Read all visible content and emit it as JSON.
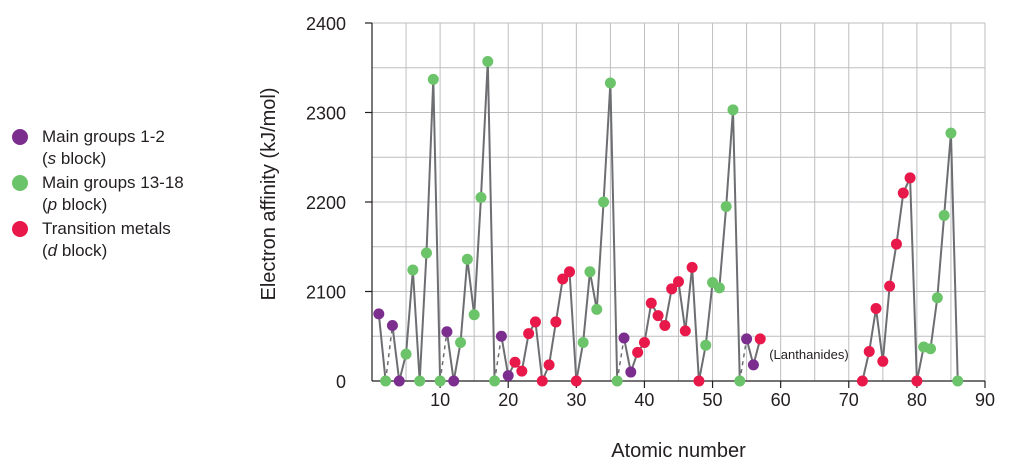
{
  "chart_data": {
    "type": "scatter",
    "xlabel": "Atomic number",
    "ylabel": "Electron affinity (kJ/mol)",
    "xlim": [
      0,
      90
    ],
    "ylim": [
      2000,
      2400
    ],
    "y_zero_label": "0",
    "x_ticks": [
      10,
      20,
      30,
      40,
      50,
      60,
      70,
      80,
      90
    ],
    "y_ticks": [
      2100,
      2200,
      2300,
      2400
    ],
    "grid": true,
    "legend_position": "left",
    "annotation": "(Lanthanides)",
    "colors": {
      "s": "#7b2e8e",
      "p": "#6cc46a",
      "d": "#e8194a",
      "line": "#6d6e71",
      "grid": "#bcbec0"
    },
    "series": [
      {
        "name": "Main groups 1-2",
        "name_block": "s",
        "name_block_suffix": " block",
        "key": "s",
        "points": [
          [
            1,
            2075
          ],
          [
            3,
            2062
          ],
          [
            4,
            2000
          ],
          [
            11,
            2055
          ],
          [
            12,
            2000
          ],
          [
            19,
            2050
          ],
          [
            20,
            2006
          ],
          [
            37,
            2048
          ],
          [
            38,
            2010
          ],
          [
            55,
            2047
          ],
          [
            56,
            2018
          ]
        ]
      },
      {
        "name": "Main groups 13-18",
        "name_block": "p",
        "name_block_suffix": " block",
        "key": "p",
        "points": [
          [
            2,
            2000
          ],
          [
            5,
            2030
          ],
          [
            6,
            2124
          ],
          [
            7,
            2000
          ],
          [
            8,
            2143
          ],
          [
            9,
            2337
          ],
          [
            10,
            2000
          ],
          [
            13,
            2043
          ],
          [
            14,
            2136
          ],
          [
            15,
            2074
          ],
          [
            16,
            2205
          ],
          [
            17,
            2357
          ],
          [
            18,
            2000
          ],
          [
            31,
            2043
          ],
          [
            32,
            2122
          ],
          [
            33,
            2080
          ],
          [
            34,
            2200
          ],
          [
            35,
            2333
          ],
          [
            36,
            2000
          ],
          [
            49,
            2040
          ],
          [
            50,
            2110
          ],
          [
            51,
            2104
          ],
          [
            52,
            2195
          ],
          [
            53,
            2303
          ],
          [
            54,
            2000
          ],
          [
            81,
            2038
          ],
          [
            82,
            2036
          ],
          [
            83,
            2093
          ],
          [
            84,
            2185
          ],
          [
            85,
            2277
          ],
          [
            86,
            2000
          ]
        ]
      },
      {
        "name": "Transition metals",
        "name_block": "d",
        "name_block_suffix": " block",
        "key": "d",
        "points": [
          [
            21,
            2021
          ],
          [
            22,
            2011
          ],
          [
            23,
            2053
          ],
          [
            24,
            2066
          ],
          [
            25,
            2000
          ],
          [
            26,
            2018
          ],
          [
            27,
            2066
          ],
          [
            28,
            2114
          ],
          [
            29,
            2122
          ],
          [
            30,
            2000
          ],
          [
            39,
            2032
          ],
          [
            40,
            2043
          ],
          [
            41,
            2087
          ],
          [
            42,
            2073
          ],
          [
            43,
            2062
          ],
          [
            44,
            2103
          ],
          [
            45,
            2111
          ],
          [
            46,
            2056
          ],
          [
            47,
            2127
          ],
          [
            48,
            2000
          ],
          [
            57,
            2047
          ],
          [
            72,
            2000
          ],
          [
            73,
            2033
          ],
          [
            74,
            2081
          ],
          [
            75,
            2022
          ],
          [
            76,
            2106
          ],
          [
            77,
            2153
          ],
          [
            78,
            2210
          ],
          [
            79,
            2227
          ],
          [
            80,
            2000
          ]
        ]
      }
    ]
  }
}
